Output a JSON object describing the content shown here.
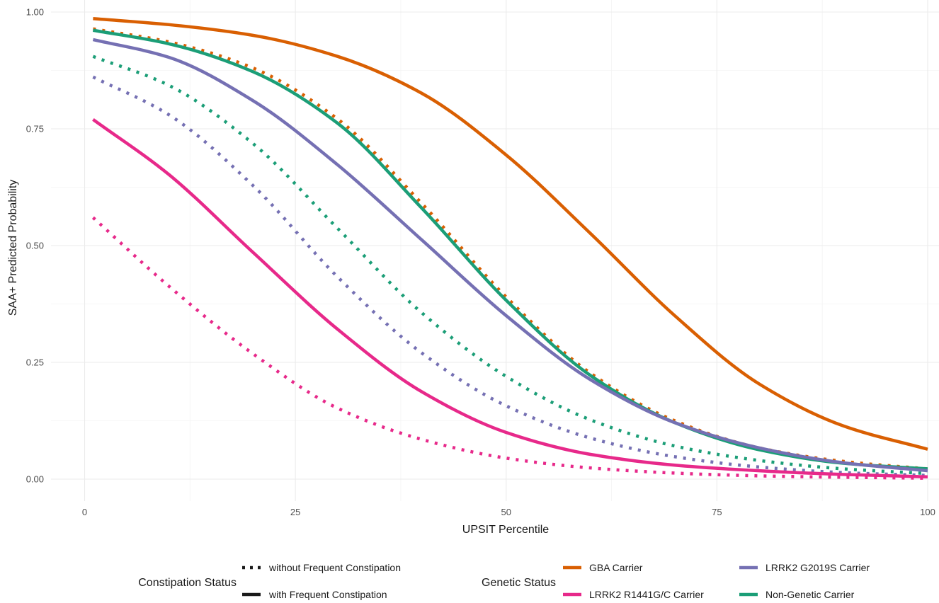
{
  "chart_data": {
    "type": "line",
    "xlabel": "UPSIT Percentile",
    "ylabel": "SAA+ Predicted Probability",
    "xlim": [
      0,
      100
    ],
    "ylim": [
      0,
      1
    ],
    "x_ticks": [
      "0",
      "25",
      "50",
      "75",
      "100"
    ],
    "y_ticks": [
      "0.00",
      "0.25",
      "0.50",
      "0.75",
      "1.00"
    ],
    "grid": true,
    "legend_placement": "bottom",
    "legend": {
      "constipation": {
        "title": "Constipation Status",
        "items": [
          {
            "label": "without Frequent Constipation",
            "linetype": "dotted"
          },
          {
            "label": "with Frequent Constipation",
            "linetype": "solid"
          }
        ]
      },
      "genetic": {
        "title": "Genetic Status",
        "items": [
          {
            "label": "GBA Carrier",
            "color": "#d95f02"
          },
          {
            "label": "LRRK2 G2019S Carrier",
            "color": "#7570b3"
          },
          {
            "label": "LRRK2 R1441G/C Carrier",
            "color": "#e7298a"
          },
          {
            "label": "Non-Genetic Carrier",
            "color": "#1b9e77"
          }
        ]
      }
    },
    "x": [
      1,
      10,
      20,
      30,
      40,
      50,
      60,
      70,
      80,
      90,
      100
    ],
    "series": [
      {
        "name": "GBA Carrier",
        "constipation": "with Frequent Constipation",
        "linetype": "solid",
        "color": "#d95f02",
        "values": [
          0.986,
          0.973,
          0.95,
          0.905,
          0.826,
          0.694,
          0.526,
          0.35,
          0.204,
          0.114,
          0.064
        ]
      },
      {
        "name": "GBA Carrier",
        "constipation": "without Frequent Constipation",
        "linetype": "dotted",
        "color": "#d95f02",
        "values": [
          0.964,
          0.936,
          0.88,
          0.771,
          0.59,
          0.39,
          0.227,
          0.125,
          0.067,
          0.038,
          0.022
        ]
      },
      {
        "name": "Non-Genetic Carrier",
        "constipation": "with Frequent Constipation",
        "linetype": "solid",
        "color": "#1b9e77",
        "values": [
          0.961,
          0.932,
          0.872,
          0.762,
          0.58,
          0.383,
          0.222,
          0.121,
          0.063,
          0.034,
          0.022
        ]
      },
      {
        "name": "Non-Genetic Carrier",
        "constipation": "without Frequent Constipation",
        "linetype": "dotted",
        "color": "#1b9e77",
        "values": [
          0.905,
          0.843,
          0.718,
          0.537,
          0.356,
          0.22,
          0.127,
          0.071,
          0.04,
          0.022,
          0.012
        ]
      },
      {
        "name": "LRRK2 G2019S Carrier",
        "constipation": "with Frequent Constipation",
        "linetype": "solid",
        "color": "#7570b3",
        "values": [
          0.941,
          0.903,
          0.81,
          0.673,
          0.512,
          0.35,
          0.213,
          0.121,
          0.067,
          0.035,
          0.018
        ]
      },
      {
        "name": "LRRK2 G2019S Carrier",
        "constipation": "without Frequent Constipation",
        "linetype": "dotted",
        "color": "#7570b3",
        "values": [
          0.861,
          0.78,
          0.628,
          0.433,
          0.27,
          0.157,
          0.088,
          0.048,
          0.026,
          0.014,
          0.008
        ]
      },
      {
        "name": "LRRK2 R1441G/C Carrier",
        "constipation": "with Frequent Constipation",
        "linetype": "solid",
        "color": "#e7298a",
        "values": [
          0.77,
          0.652,
          0.485,
          0.321,
          0.187,
          0.1,
          0.053,
          0.03,
          0.018,
          0.01,
          0.005
        ]
      },
      {
        "name": "LRRK2 R1441G/C Carrier",
        "constipation": "without Frequent Constipation",
        "linetype": "dotted",
        "color": "#e7298a",
        "values": [
          0.56,
          0.413,
          0.268,
          0.152,
          0.085,
          0.045,
          0.024,
          0.013,
          0.007,
          0.004,
          0.002
        ]
      }
    ]
  }
}
